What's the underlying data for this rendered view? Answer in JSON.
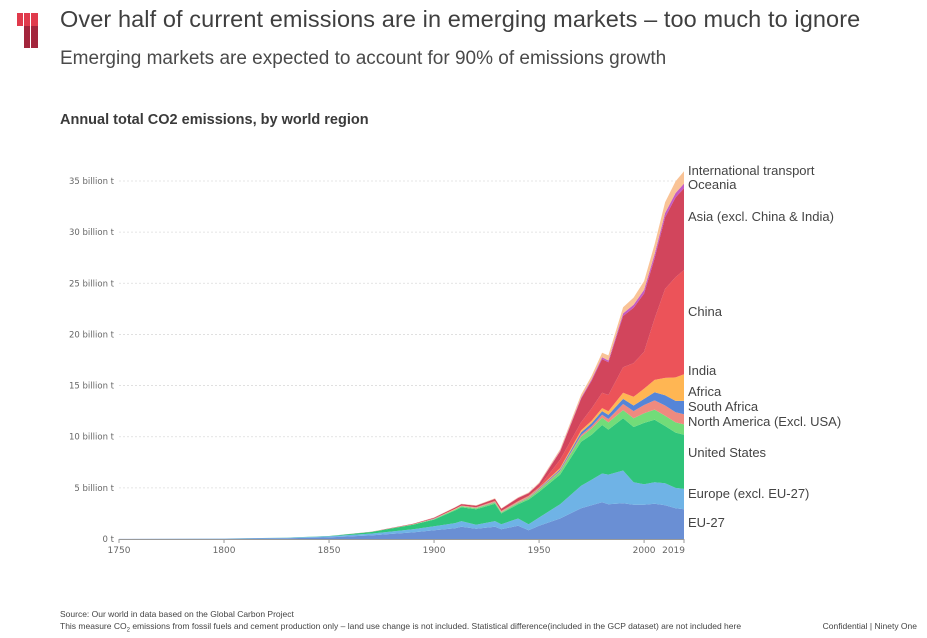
{
  "header": {
    "title": "Over half of current emissions are in emerging markets – too much to ignore",
    "subtitle": "Emerging markets are expected to account for 90% of emissions growth",
    "brand_colors": [
      "#e03a4c",
      "#a3253c"
    ]
  },
  "footer": {
    "source": "Source: Our world in data based on the Global Carbon Project",
    "note_prefix": "This measure CO",
    "note_sub": "2",
    "note_suffix": " emissions from fossil fuels and cement production only – land use change is not included. Statistical difference(included in the GCP dataset) are not included here",
    "confidential": "Confidential | Ninety One"
  },
  "chart_data": {
    "type": "area",
    "stacked": true,
    "title": "Annual total CO2 emissions, by world region",
    "xlabel": "",
    "ylabel": "",
    "xlim": [
      1750,
      2019
    ],
    "ylim": [
      0,
      35
    ],
    "grid": true,
    "x_ticks": [
      "1750",
      "1800",
      "1850",
      "1900",
      "1950",
      "2000",
      "2019"
    ],
    "x_tick_values": [
      1750,
      1800,
      1850,
      1900,
      1950,
      2000,
      2019
    ],
    "y_ticks": [
      "0 t",
      "5 billion t",
      "10 billion t",
      "15 billion t",
      "20 billion t",
      "25 billion t",
      "30 billion t",
      "35 billion t"
    ],
    "y_tick_values": [
      0,
      5,
      10,
      15,
      20,
      25,
      30,
      35
    ],
    "units": "billion tonnes",
    "legend_placement": "right (inline labels)",
    "x": [
      1750,
      1800,
      1830,
      1850,
      1870,
      1890,
      1900,
      1910,
      1913,
      1920,
      1929,
      1932,
      1940,
      1945,
      1950,
      1960,
      1970,
      1975,
      1980,
      1983,
      1990,
      1995,
      2000,
      2005,
      2010,
      2015,
      2019
    ],
    "series": [
      {
        "name": "EU-27",
        "color": "#6a8fd4",
        "values": [
          0.01,
          0.03,
          0.08,
          0.16,
          0.35,
          0.65,
          0.85,
          1.05,
          1.2,
          1.0,
          1.2,
          0.95,
          1.3,
          0.85,
          1.3,
          2.0,
          3.0,
          3.3,
          3.6,
          3.4,
          3.5,
          3.35,
          3.35,
          3.45,
          3.3,
          3.0,
          2.9
        ]
      },
      {
        "name": "Europe (excl. EU-27)",
        "color": "#6fb3e6",
        "values": [
          0.0,
          0.02,
          0.05,
          0.1,
          0.18,
          0.3,
          0.4,
          0.5,
          0.55,
          0.4,
          0.55,
          0.5,
          0.7,
          0.6,
          0.8,
          1.4,
          2.2,
          2.5,
          2.8,
          2.9,
          3.2,
          2.2,
          2.0,
          2.1,
          2.15,
          2.0,
          2.0
        ]
      },
      {
        "name": "United States",
        "color": "#2fc47a",
        "values": [
          0.0,
          0.0,
          0.01,
          0.03,
          0.15,
          0.45,
          0.65,
          1.25,
          1.35,
          1.5,
          1.7,
          1.05,
          1.4,
          2.4,
          2.5,
          2.9,
          4.3,
          4.4,
          4.75,
          4.4,
          5.1,
          5.4,
          6.0,
          6.1,
          5.6,
          5.4,
          5.3
        ]
      },
      {
        "name": "North America (Excl. USA)",
        "color": "#72dc79",
        "values": [
          0.0,
          0.0,
          0.0,
          0.0,
          0.01,
          0.03,
          0.05,
          0.08,
          0.1,
          0.1,
          0.12,
          0.1,
          0.12,
          0.15,
          0.2,
          0.3,
          0.5,
          0.6,
          0.7,
          0.7,
          0.8,
          0.85,
          0.95,
          1.0,
          1.0,
          1.0,
          1.0
        ]
      },
      {
        "name": "South Africa",
        "color": "#ef8a7f",
        "values": [
          0.0,
          0.0,
          0.0,
          0.0,
          0.0,
          0.0,
          0.01,
          0.02,
          0.02,
          0.03,
          0.04,
          0.04,
          0.05,
          0.06,
          0.08,
          0.1,
          0.17,
          0.22,
          0.3,
          0.33,
          0.6,
          0.7,
          0.8,
          0.9,
          1.0,
          1.0,
          1.0
        ]
      },
      {
        "name": "Africa",
        "color": "#5585d8",
        "values": [
          0.0,
          0.0,
          0.0,
          0.0,
          0.0,
          0.0,
          0.01,
          0.01,
          0.01,
          0.02,
          0.03,
          0.03,
          0.04,
          0.05,
          0.07,
          0.12,
          0.25,
          0.3,
          0.35,
          0.4,
          0.5,
          0.55,
          0.6,
          0.8,
          1.0,
          1.1,
          1.3
        ]
      },
      {
        "name": "India",
        "color": "#ffb653",
        "values": [
          0.0,
          0.0,
          0.0,
          0.0,
          0.0,
          0.01,
          0.02,
          0.03,
          0.03,
          0.04,
          0.05,
          0.05,
          0.06,
          0.07,
          0.07,
          0.12,
          0.2,
          0.25,
          0.3,
          0.35,
          0.6,
          0.85,
          1.0,
          1.2,
          1.7,
          2.3,
          2.6
        ]
      },
      {
        "name": "China",
        "color": "#ec5359",
        "values": [
          0.0,
          0.0,
          0.0,
          0.0,
          0.0,
          0.0,
          0.01,
          0.02,
          0.02,
          0.02,
          0.03,
          0.03,
          0.04,
          0.04,
          0.08,
          0.8,
          0.8,
          1.2,
          1.5,
          1.6,
          2.5,
          3.3,
          3.6,
          6.0,
          8.7,
          9.8,
          10.2
        ]
      },
      {
        "name": "Asia (excl. China & India)",
        "color": "#d2455c",
        "values": [
          0.0,
          0.0,
          0.0,
          0.0,
          0.01,
          0.05,
          0.08,
          0.12,
          0.13,
          0.15,
          0.2,
          0.2,
          0.3,
          0.25,
          0.3,
          0.8,
          2.3,
          2.7,
          3.3,
          3.2,
          5.0,
          5.4,
          5.7,
          5.9,
          7.0,
          7.8,
          8.0
        ]
      },
      {
        "name": "Oceania",
        "color": "#c45bc4",
        "values": [
          0.0,
          0.0,
          0.0,
          0.0,
          0.0,
          0.0,
          0.01,
          0.01,
          0.01,
          0.01,
          0.02,
          0.02,
          0.02,
          0.03,
          0.04,
          0.07,
          0.1,
          0.13,
          0.16,
          0.17,
          0.26,
          0.3,
          0.36,
          0.4,
          0.42,
          0.43,
          0.45
        ]
      },
      {
        "name": "International transport",
        "color": "#f9c396",
        "values": [
          0.0,
          0.0,
          0.0,
          0.0,
          0.0,
          0.01,
          0.02,
          0.03,
          0.03,
          0.03,
          0.04,
          0.04,
          0.05,
          0.06,
          0.08,
          0.17,
          0.3,
          0.35,
          0.45,
          0.5,
          0.6,
          0.7,
          0.85,
          0.95,
          1.05,
          1.15,
          1.2
        ]
      }
    ]
  }
}
